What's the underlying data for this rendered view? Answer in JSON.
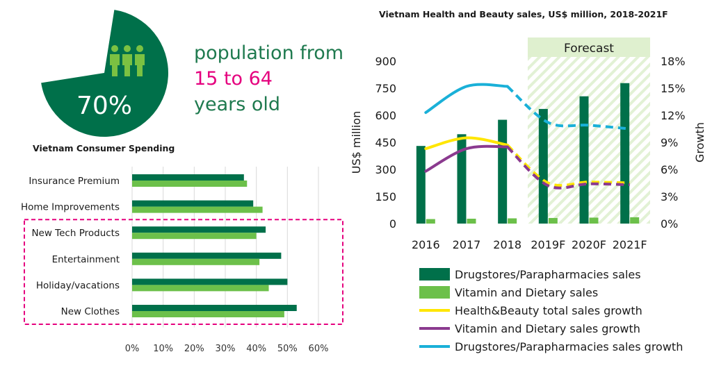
{
  "population": {
    "percent_label": "70%",
    "percent_value": 70,
    "icon": "people-group-icon",
    "line1": "population from",
    "line2": "15 to 64",
    "line3": "years old",
    "colors": {
      "pie": "#00704a",
      "text_green": "#1f7a4f",
      "text_pink": "#e5007e",
      "icon": "#7bc142"
    }
  },
  "chart_data": [
    {
      "type": "bar",
      "orientation": "horizontal",
      "title": "Vietnam Consumer Spending",
      "categories": [
        "Insurance Premium",
        "Home Improvements",
        "New Tech Products",
        "Entertainment",
        "Holiday/vacations",
        "New Clothes"
      ],
      "series": [
        {
          "color": "#00704a",
          "values": [
            36,
            39,
            43,
            48,
            50,
            53
          ]
        },
        {
          "color": "#6cc04a",
          "values": [
            37,
            42,
            40,
            41,
            44,
            49
          ]
        }
      ],
      "xlim": [
        0,
        60
      ],
      "xticks": [
        "0%",
        "10%",
        "20%",
        "30%",
        "40%",
        "50%",
        "60%"
      ],
      "grid": true,
      "highlight": {
        "categories": [
          "New Tech Products",
          "Entertainment",
          "Holiday/vacations",
          "New Clothes"
        ],
        "color": "#e5007e",
        "style": "dashed"
      }
    },
    {
      "type": "bar+line",
      "title": "Vietnam Health and Beauty sales, US$ million, 2018-2021F",
      "categories": [
        "2016",
        "2017",
        "2018",
        "2019F",
        "2020F",
        "2021F"
      ],
      "ylabel": "US$ million",
      "ylabel_right": "Growth",
      "ylim": [
        0,
        900
      ],
      "yticks": [
        "0",
        "150",
        "300",
        "450",
        "600",
        "750",
        "900"
      ],
      "ylim_right": [
        0,
        18
      ],
      "yticks_right": [
        "0%",
        "3%",
        "6%",
        "9%",
        "12%",
        "15%",
        "18%"
      ],
      "forecast_label": "Forecast",
      "forecast_start": "2019F",
      "series": [
        {
          "name": "Drugstores/Parapharmacies sales",
          "kind": "bar",
          "axis": "left",
          "color": "#00704a",
          "values": [
            430,
            495,
            575,
            635,
            705,
            778
          ]
        },
        {
          "name": "Vitamin and Dietary sales",
          "kind": "bar",
          "axis": "left",
          "color": "#6cc04a",
          "values": [
            25,
            27,
            29,
            31,
            33,
            35
          ]
        },
        {
          "name": "Health&Beauty total sales growth",
          "kind": "line",
          "axis": "right",
          "color": "#ffe600",
          "values": [
            8.3,
            9.5,
            8.7,
            4.5,
            4.6,
            4.5
          ]
        },
        {
          "name": "Vitamin and Dietary sales growth",
          "kind": "line",
          "axis": "right",
          "color": "#8b3a8f",
          "values": [
            5.8,
            8.3,
            8.5,
            4.2,
            4.4,
            4.3
          ]
        },
        {
          "name": "Drugstores/Parapharmacies sales growth",
          "kind": "line",
          "axis": "right",
          "color": "#1ab0d8",
          "values": [
            12.3,
            15.2,
            15.2,
            11.2,
            10.9,
            10.5
          ]
        }
      ]
    }
  ]
}
